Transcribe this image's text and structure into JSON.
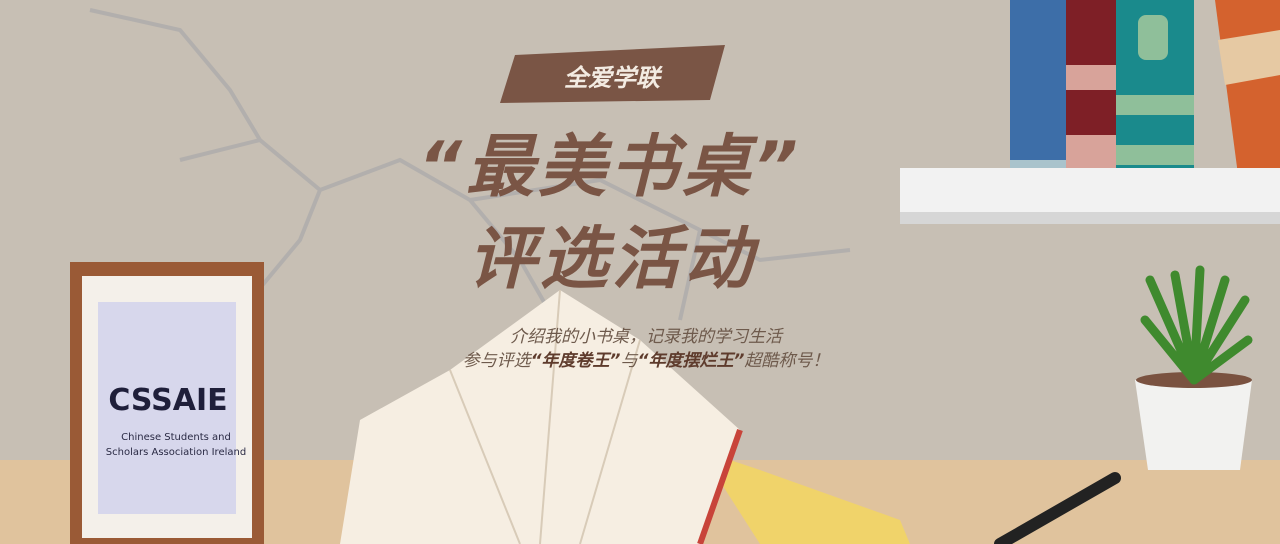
{
  "banner": {
    "tag": "全爱学联",
    "title_line1": "“最美书桌”",
    "title_line2": "评选活动",
    "subtitle_line1": "介绍我的小书桌，记录我的学习生活",
    "subtitle_line2": [
      "参与评选",
      "“年度卷王”",
      "与",
      "“年度摆烂王”",
      "超酷称号！"
    ],
    "logo": {
      "mark": "CSSAIE",
      "line1": "Chinese Students and",
      "line2": "Scholars Association Ireland"
    }
  }
}
